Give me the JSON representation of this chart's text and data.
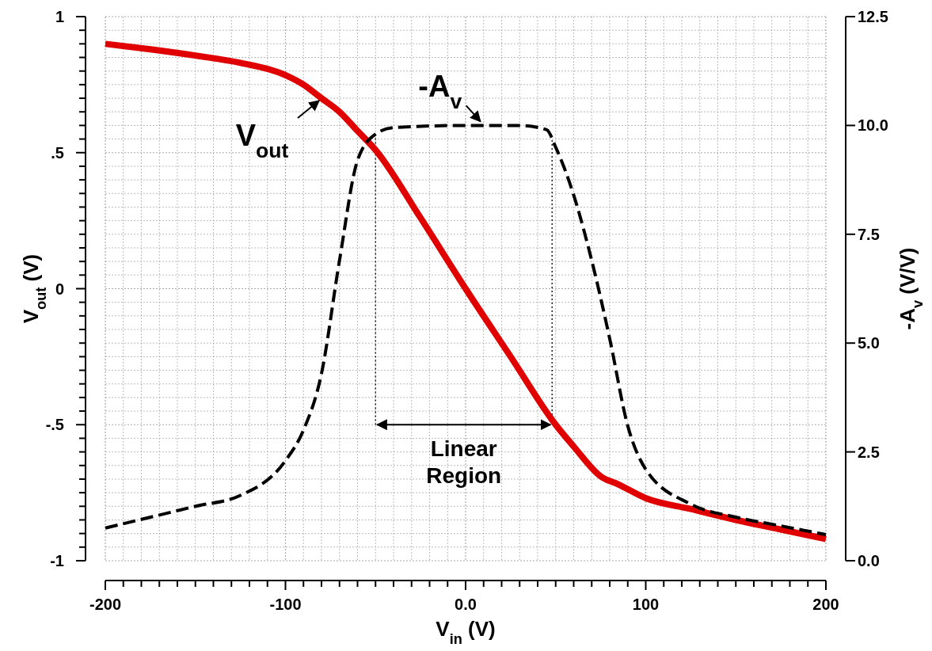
{
  "chart_data": {
    "type": "line",
    "xlabel": "V$_{in}$ (V)",
    "ylabel": "V$_{out}$ (V)",
    "y2label": "-A$_{v}$ (V/V)",
    "xlim": [
      -200,
      200
    ],
    "xticks": [
      -200,
      {
        "value": -190,
        "label": null
      },
      {
        "value": -180,
        "label": null
      },
      {
        "value": -170,
        "label": null
      },
      {
        "value": -160,
        "label": null
      },
      {
        "value": -150,
        "label": null
      },
      {
        "value": -140,
        "label": null
      },
      {
        "value": -130,
        "label": null
      },
      {
        "value": -120,
        "label": null
      },
      {
        "value": -110,
        "label": null
      },
      -100,
      {
        "value": -90,
        "label": null
      },
      {
        "value": -80,
        "label": null
      },
      {
        "value": -70,
        "label": null
      },
      {
        "value": -60,
        "label": null
      },
      {
        "value": -50,
        "label": null
      },
      {
        "value": -40,
        "label": null
      },
      {
        "value": -30,
        "label": null
      },
      {
        "value": -20,
        "label": null
      },
      {
        "value": -10,
        "label": null
      },
      {
        "value": 0,
        "label": "0.0"
      },
      {
        "value": 10,
        "label": null
      },
      {
        "value": 20,
        "label": null
      },
      {
        "value": 30,
        "label": null
      },
      {
        "value": 40,
        "label": null
      },
      {
        "value": 50,
        "label": null
      },
      {
        "value": 60,
        "label": null
      },
      {
        "value": 70,
        "label": null
      },
      {
        "value": 80,
        "label": null
      },
      {
        "value": 90,
        "label": null
      },
      100,
      {
        "value": 110,
        "label": null
      },
      {
        "value": 120,
        "label": null
      },
      {
        "value": 130,
        "label": null
      },
      {
        "value": 140,
        "label": null
      },
      {
        "value": 150,
        "label": null
      },
      {
        "value": 160,
        "label": null
      },
      {
        "value": 170,
        "label": null
      },
      {
        "value": 180,
        "label": null
      },
      {
        "value": 190,
        "label": null
      },
      200
    ],
    "ylim": [
      -1,
      1
    ],
    "yticks": [
      -1,
      {
        "value": -0.95,
        "label": null
      },
      {
        "value": -0.9,
        "label": null
      },
      {
        "value": -0.85,
        "label": null
      },
      {
        "value": -0.8,
        "label": null
      },
      {
        "value": -0.75,
        "label": null
      },
      {
        "value": -0.7,
        "label": null
      },
      {
        "value": -0.65,
        "label": null
      },
      {
        "value": -0.6,
        "label": null
      },
      {
        "value": -0.55,
        "label": null
      },
      {
        "value": -0.5,
        "label": "-.5"
      },
      {
        "value": -0.45,
        "label": null
      },
      {
        "value": -0.4,
        "label": null
      },
      {
        "value": -0.35,
        "label": null
      },
      {
        "value": -0.3,
        "label": null
      },
      {
        "value": -0.25,
        "label": null
      },
      {
        "value": -0.2,
        "label": null
      },
      {
        "value": -0.15,
        "label": null
      },
      {
        "value": -0.1,
        "label": null
      },
      {
        "value": -0.05,
        "label": null
      },
      0,
      {
        "value": 0.05,
        "label": null
      },
      {
        "value": 0.1,
        "label": null
      },
      {
        "value": 0.15,
        "label": null
      },
      {
        "value": 0.2,
        "label": null
      },
      {
        "value": 0.25,
        "label": null
      },
      {
        "value": 0.3,
        "label": null
      },
      {
        "value": 0.35,
        "label": null
      },
      {
        "value": 0.4,
        "label": null
      },
      {
        "value": 0.45,
        "label": null
      },
      {
        "value": 0.5,
        "label": ".5"
      },
      {
        "value": 0.55,
        "label": null
      },
      {
        "value": 0.6,
        "label": null
      },
      {
        "value": 0.65,
        "label": null
      },
      {
        "value": 0.7,
        "label": null
      },
      {
        "value": 0.75,
        "label": null
      },
      {
        "value": 0.8,
        "label": null
      },
      {
        "value": 0.85,
        "label": null
      },
      {
        "value": 0.9,
        "label": null
      },
      {
        "value": 0.95,
        "label": null
      },
      1
    ],
    "y2lim": [
      0,
      12.5
    ],
    "y2ticks": [
      {
        "value": 0,
        "label": "0.0"
      },
      2.5,
      {
        "value": 5,
        "label": "5.0"
      },
      7.5,
      {
        "value": 10,
        "label": "10.0"
      },
      12.5
    ],
    "grid": true,
    "series": [
      {
        "color": "#e00000",
        "line_style": "solid",
        "x": [
          -200,
          -175,
          -150,
          -125,
          -100,
          -90,
          -80,
          -70,
          -60,
          -50,
          -25,
          0,
          25,
          50,
          60,
          75,
          85,
          100,
          125,
          150,
          175,
          200
        ],
        "values": [
          0.9,
          0.88,
          0.857,
          0.83,
          0.785,
          0.75,
          0.7,
          0.65,
          0.58,
          0.51,
          0.26,
          0.0,
          -0.25,
          -0.5,
          -0.58,
          -0.69,
          -0.72,
          -0.77,
          -0.81,
          -0.85,
          -0.885,
          -0.92
        ]
      },
      {
        "color": "#000000",
        "line_style": "dashed",
        "axis": "y2",
        "x": [
          -200,
          -150,
          -125,
          -100,
          -90,
          -80,
          -70,
          -60,
          -50,
          -40,
          0,
          30,
          45,
          50,
          60,
          70,
          80,
          90,
          100,
          125,
          150,
          175,
          200
        ],
        "values": [
          0.75,
          1.25,
          1.5,
          2.3,
          3.0,
          4.3,
          6.9,
          9.2,
          9.8,
          9.95,
          10.0,
          10.0,
          9.9,
          9.5,
          8.4,
          6.9,
          5.1,
          3.1,
          2.1,
          1.3,
          1.0,
          0.8,
          0.6
        ]
      }
    ],
    "ref_lines": [
      {
        "axis": "x",
        "value": -50,
        "line_style": "dotted",
        "color": "#000000"
      },
      {
        "axis": "x",
        "value": 48,
        "line_style": "dotted",
        "color": "#000000"
      }
    ],
    "annotations": [
      {
        "text": "V$_{out}$",
        "x": -80,
        "y": 0.7
      },
      {
        "text": "-A$_{v}$",
        "x": 10,
        "y": 0.6
      },
      "Linear\nRegion"
    ]
  }
}
